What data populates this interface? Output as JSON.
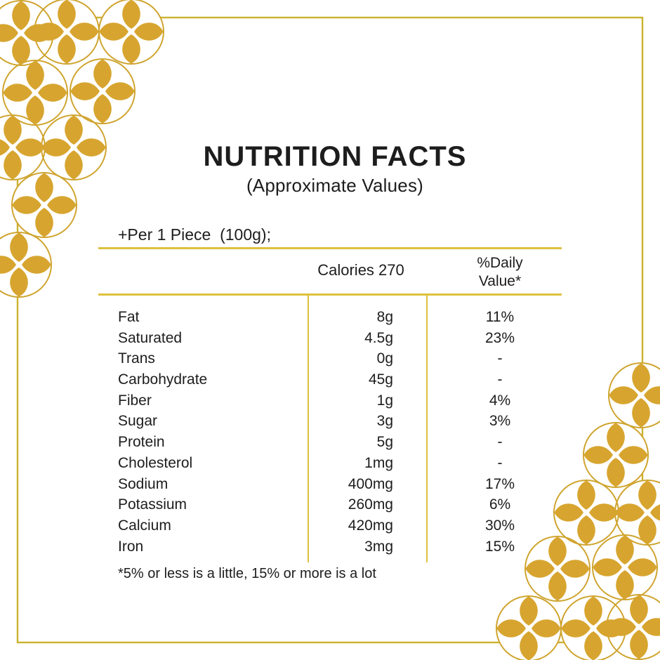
{
  "title": "NUTRITION FACTS",
  "subtitle": "(Approximate Values)",
  "serving_line": "+Per 1 Piece  (100g);",
  "table": {
    "calories_header": "Calories 270",
    "daily_value_header": "%Daily Value*",
    "rows": [
      {
        "label": "Fat",
        "amount": "8g",
        "daily_value": "11%"
      },
      {
        "label": "Saturated",
        "amount": "4.5g",
        "daily_value": "23%"
      },
      {
        "label": "Trans",
        "amount": "0g",
        "daily_value": "-"
      },
      {
        "label": "Carbohydrate",
        "amount": "45g",
        "daily_value": "-"
      },
      {
        "label": "Fiber",
        "amount": "1g",
        "daily_value": "4%"
      },
      {
        "label": "Sugar",
        "amount": "3g",
        "daily_value": "3%"
      },
      {
        "label": "Protein",
        "amount": "5g",
        "daily_value": "-"
      },
      {
        "label": "Cholesterol",
        "amount": "1mg",
        "daily_value": "-"
      },
      {
        "label": "Sodium",
        "amount": "400mg",
        "daily_value": "17%"
      },
      {
        "label": "Potassium",
        "amount": "260mg",
        "daily_value": "6%"
      },
      {
        "label": "Calcium",
        "amount": "420mg",
        "daily_value": "30%"
      },
      {
        "label": "Iron",
        "amount": "3mg",
        "daily_value": "15%"
      }
    ]
  },
  "footnote": "*5% or less is a little, 15% or more is a lot",
  "colors": {
    "flower_gold": "#d7a52f",
    "flower_stroke": "#cfa42e",
    "frame_gold": "#cbb22e",
    "table_line": "#ddc13d",
    "text": "#1d1d1d",
    "background": "#ffffff"
  }
}
